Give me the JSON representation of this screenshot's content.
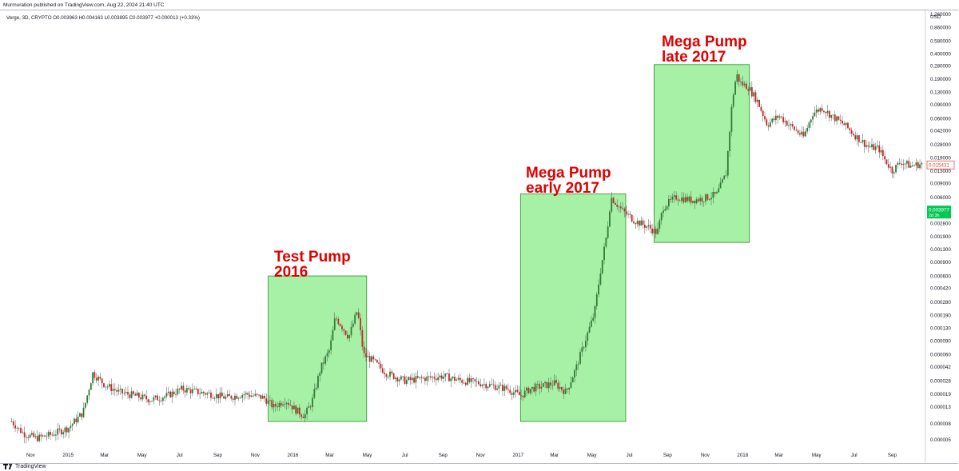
{
  "page": {
    "published_by": "Murmuration published on TradingView.com, Aug 22, 2024 21:40 UTC",
    "footer_brand": "TradingView"
  },
  "chart_data": {
    "type": "candlestick",
    "symbol_line": "Verge, 3D, CRYPTO  O0.003963 H0.004163 L0.003895 C0.003977 +0.000013 (+0.33%)",
    "currency": "USD",
    "y_scale": "log",
    "y_ticks": [
      "1.260000",
      "0.860000",
      "0.580000",
      "0.400000",
      "0.280000",
      "0.190000",
      "0.130000",
      "0.090000",
      "0.060000",
      "0.042000",
      "0.028000",
      "0.019000",
      "0.013000",
      "0.009000",
      "0.006000",
      "0.002800",
      "0.001900",
      "0.001300",
      "0.000900",
      "0.000600",
      "0.000420",
      "0.000280",
      "0.000190",
      "0.000130",
      "0.000090",
      "0.000060",
      "0.000042",
      "0.000028",
      "0.000019",
      "0.000013",
      "0.000008",
      "0.000005"
    ],
    "x_ticks": [
      "Nov",
      "2015",
      "Mar",
      "May",
      "Jul",
      "Sep",
      "Nov",
      "2016",
      "Mar",
      "May",
      "Jul",
      "Sep",
      "Nov",
      "2017",
      "Mar",
      "May",
      "Jul",
      "Sep",
      "Nov",
      "2018",
      "Mar",
      "May",
      "Jul",
      "Sep"
    ],
    "price_labels": [
      {
        "value": "0.015431",
        "style": "red-outline"
      },
      {
        "value": "0.003977",
        "sub": "2d 3h",
        "style": "green"
      }
    ],
    "annotations": [
      {
        "lines": [
          "Test Pump",
          "2016"
        ]
      },
      {
        "lines": [
          "Mega Pump",
          "early 2017"
        ]
      },
      {
        "lines": [
          "Mega Pump",
          "late 2017"
        ]
      }
    ],
    "colors": {
      "up": "#26a69a",
      "down": "#c62828",
      "bull": "#2e7d32",
      "box_fill": "#90ee90",
      "box_stroke": "#2e8b2e",
      "annotation": "#e00000"
    },
    "price_path": [
      [
        "2014-10-01",
        8.5e-06
      ],
      [
        "2014-10-20",
        6e-06
      ],
      [
        "2014-11-10",
        5.2e-06
      ],
      [
        "2014-12-05",
        5.8e-06
      ],
      [
        "2015-01-01",
        7e-06
      ],
      [
        "2015-01-25",
        1.1e-05
      ],
      [
        "2015-02-10",
        3.5e-05
      ],
      [
        "2015-03-01",
        2.5e-05
      ],
      [
        "2015-03-25",
        2e-05
      ],
      [
        "2015-04-20",
        1.8e-05
      ],
      [
        "2015-05-15",
        1.6e-05
      ],
      [
        "2015-06-10",
        1.8e-05
      ],
      [
        "2015-07-05",
        2.2e-05
      ],
      [
        "2015-08-01",
        2e-05
      ],
      [
        "2015-08-20",
        1.9e-05
      ],
      [
        "2015-09-15",
        1.7e-05
      ],
      [
        "2015-10-15",
        1.9e-05
      ],
      [
        "2015-11-15",
        1.7e-05
      ],
      [
        "2015-12-01",
        1.3e-05
      ],
      [
        "2015-12-20",
        1.6e-05
      ],
      [
        "2016-01-05",
        1.2e-05
      ],
      [
        "2016-01-20",
        1e-05
      ],
      [
        "2016-02-01",
        1.5e-05
      ],
      [
        "2016-02-15",
        4e-05
      ],
      [
        "2016-03-01",
        7e-05
      ],
      [
        "2016-03-10",
        0.00018
      ],
      [
        "2016-03-20",
        0.00014
      ],
      [
        "2016-04-01",
        0.0001
      ],
      [
        "2016-04-15",
        0.00022
      ],
      [
        "2016-04-25",
        6e-05
      ],
      [
        "2016-05-10",
        5e-05
      ],
      [
        "2016-06-01",
        3.5e-05
      ],
      [
        "2016-07-01",
        2.8e-05
      ],
      [
        "2016-08-01",
        3e-05
      ],
      [
        "2016-09-01",
        3.2e-05
      ],
      [
        "2016-10-01",
        2.8e-05
      ],
      [
        "2016-11-01",
        2.6e-05
      ],
      [
        "2016-12-15",
        2.2e-05
      ],
      [
        "2017-01-05",
        1.8e-05
      ],
      [
        "2017-01-20",
        2.2e-05
      ],
      [
        "2017-02-10",
        2.4e-05
      ],
      [
        "2017-03-01",
        2.6e-05
      ],
      [
        "2017-03-20",
        2e-05
      ],
      [
        "2017-04-05",
        4e-05
      ],
      [
        "2017-04-20",
        9e-05
      ],
      [
        "2017-05-05",
        0.0002
      ],
      [
        "2017-05-15",
        0.0007
      ],
      [
        "2017-05-25",
        0.002
      ],
      [
        "2017-06-01",
        0.006
      ],
      [
        "2017-06-20",
        0.004
      ],
      [
        "2017-07-10",
        0.003
      ],
      [
        "2017-08-01",
        0.0025
      ],
      [
        "2017-08-15",
        0.0021
      ],
      [
        "2017-08-25",
        0.0045
      ],
      [
        "2017-09-15",
        0.006
      ],
      [
        "2017-10-10",
        0.0055
      ],
      [
        "2017-10-30",
        0.0058
      ],
      [
        "2017-11-20",
        0.0065
      ],
      [
        "2017-12-05",
        0.012
      ],
      [
        "2017-12-15",
        0.1
      ],
      [
        "2017-12-22",
        0.22
      ],
      [
        "2017-12-28",
        0.17
      ],
      [
        "2018-01-10",
        0.15
      ],
      [
        "2018-01-25",
        0.1
      ],
      [
        "2018-02-10",
        0.05
      ],
      [
        "2018-03-01",
        0.065
      ],
      [
        "2018-03-20",
        0.048
      ],
      [
        "2018-04-10",
        0.035
      ],
      [
        "2018-04-25",
        0.07
      ],
      [
        "2018-05-10",
        0.082
      ],
      [
        "2018-05-25",
        0.065
      ],
      [
        "2018-06-15",
        0.05
      ],
      [
        "2018-07-05",
        0.035
      ],
      [
        "2018-07-25",
        0.026
      ],
      [
        "2018-08-10",
        0.025
      ],
      [
        "2018-08-20",
        0.018
      ],
      [
        "2018-09-01",
        0.013
      ],
      [
        "2018-09-15",
        0.017
      ],
      [
        "2018-10-01",
        0.015
      ],
      [
        "2018-10-20",
        0.016
      ]
    ],
    "boxes": [
      {
        "start": "2015-11-22",
        "end": "2016-04-30",
        "low": 8.5e-06,
        "high": 0.0006
      },
      {
        "start": "2017-01-05",
        "end": "2017-06-25",
        "low": 8.5e-06,
        "high": 0.0066
      },
      {
        "start": "2017-08-10",
        "end": "2018-01-12",
        "low": 0.0016,
        "high": 0.29
      }
    ]
  }
}
